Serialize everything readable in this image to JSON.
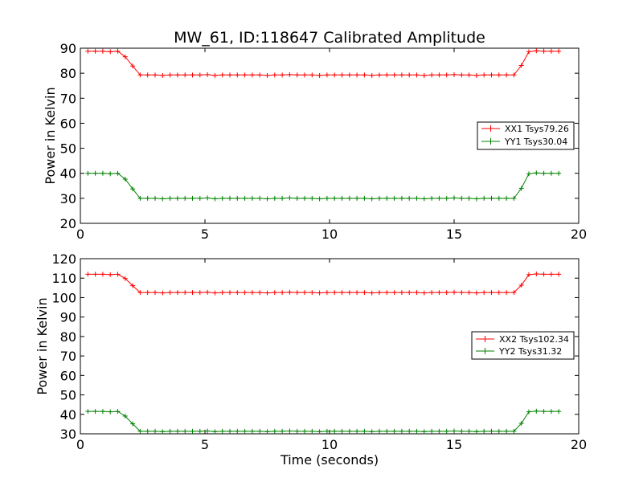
{
  "title": "MW_61, ID:118647 Calibrated Amplitude",
  "chart_data": [
    {
      "type": "line",
      "xlabel": "",
      "ylabel": "Power in Kelvin",
      "xlim": [
        0,
        20
      ],
      "ylim": [
        20,
        90
      ],
      "xticks": [
        0,
        5,
        10,
        15,
        20
      ],
      "yticks": [
        20,
        30,
        40,
        50,
        60,
        70,
        80,
        90
      ],
      "legend_position": "center-right",
      "series": [
        {
          "name": "XX1 Tsys79.26",
          "color": "#ff0000",
          "level_high": 88.8,
          "level_low": 79.3
        },
        {
          "name": "YY1 Tsys30.04",
          "color": "#008000",
          "level_high": 40.0,
          "level_low": 30.0
        }
      ]
    },
    {
      "type": "line",
      "xlabel": "Time (seconds)",
      "ylabel": "Power in Kelvin",
      "xlim": [
        0,
        20
      ],
      "ylim": [
        30,
        120
      ],
      "xticks": [
        0,
        5,
        10,
        15,
        20
      ],
      "yticks": [
        30,
        40,
        50,
        60,
        70,
        80,
        90,
        100,
        110,
        120
      ],
      "legend_position": "center-right",
      "series": [
        {
          "name": "XX2 Tsys102.34",
          "color": "#ff0000",
          "level_high": 112.0,
          "level_low": 102.6
        },
        {
          "name": "YY2 Tsys31.32",
          "color": "#008000",
          "level_high": 41.5,
          "level_low": 31.3
        }
      ]
    }
  ]
}
